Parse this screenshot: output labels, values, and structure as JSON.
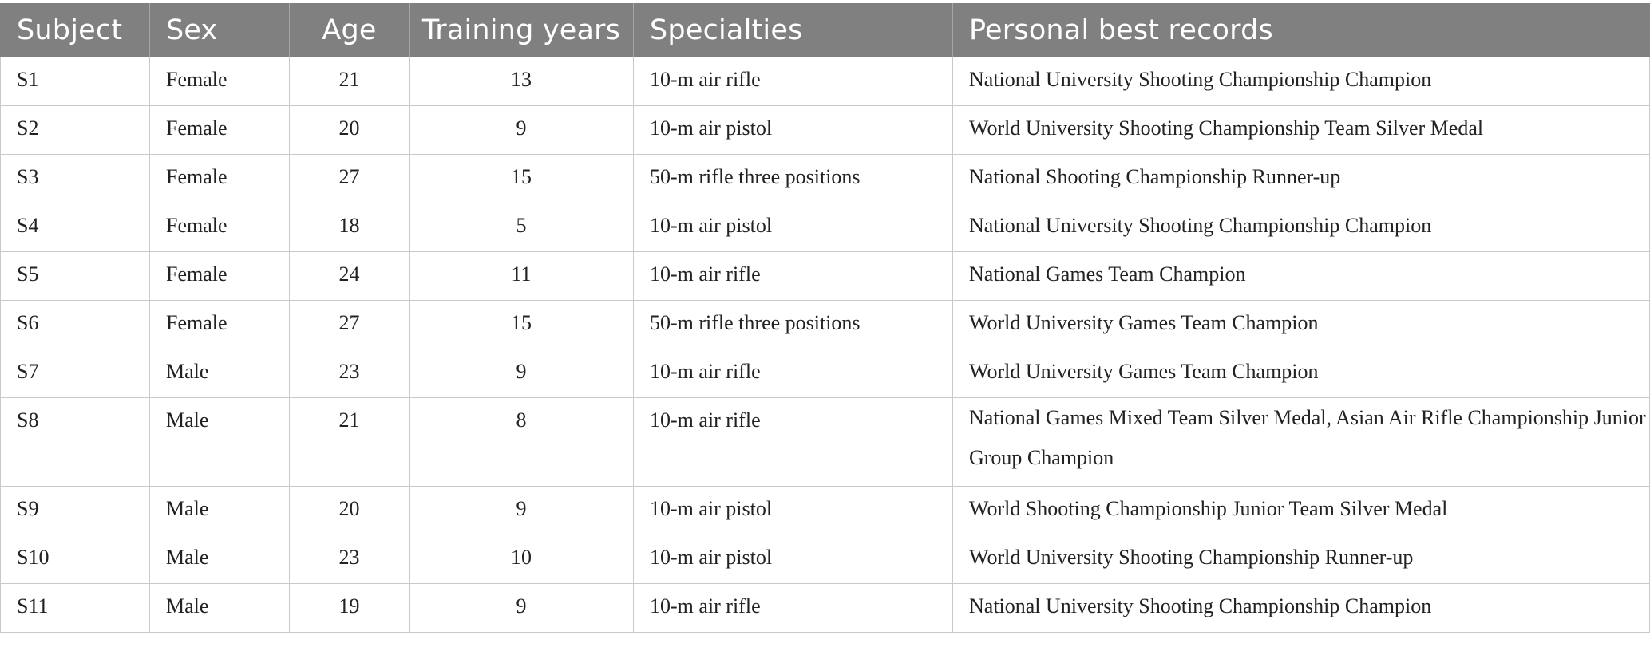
{
  "table": {
    "headers": [
      "Subject",
      "Sex",
      "Age",
      "Training years",
      "Specialties",
      "Personal best records"
    ],
    "rows": [
      [
        "S1",
        "Female",
        "21",
        "13",
        "10-m air rifle",
        "National University Shooting Championship Champion"
      ],
      [
        "S2",
        "Female",
        "20",
        "9",
        "10-m air pistol",
        "World University Shooting Championship Team Silver Medal"
      ],
      [
        "S3",
        "Female",
        "27",
        "15",
        "50-m rifle three positions",
        "National Shooting Championship Runner-up"
      ],
      [
        "S4",
        "Female",
        "18",
        "5",
        "10-m air pistol",
        "National University Shooting Championship Champion"
      ],
      [
        "S5",
        "Female",
        "24",
        "11",
        "10-m air rifle",
        "National Games Team Champion"
      ],
      [
        "S6",
        "Female",
        "27",
        "15",
        "50-m rifle three positions",
        "World University Games Team Champion"
      ],
      [
        "S7",
        "Male",
        "23",
        "9",
        "10-m air rifle",
        "World University Games Team Champion"
      ],
      [
        "S8",
        "Male",
        "21",
        "8",
        "10-m air rifle",
        "National Games Mixed Team Silver Medal, Asian Air Rifle Championship Junior Group Champion"
      ],
      [
        "S9",
        "Male",
        "20",
        "9",
        "10-m air pistol",
        "World Shooting Championship Junior Team Silver Medal"
      ],
      [
        "S10",
        "Male",
        "23",
        "10",
        "10-m air pistol",
        "World University Shooting Championship Runner-up"
      ],
      [
        "S11",
        "Male",
        "19",
        "9",
        "10-m air rifle",
        "National University Shooting Championship Champion"
      ]
    ]
  }
}
